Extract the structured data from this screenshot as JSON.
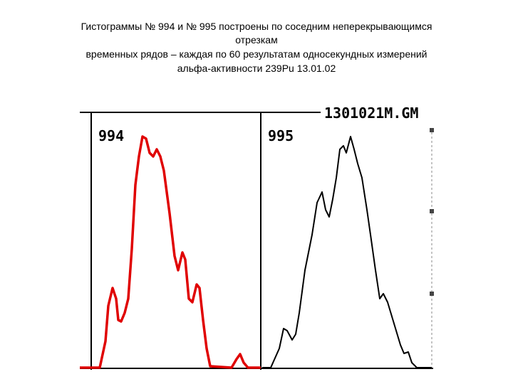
{
  "title": {
    "lines": [
      "Гистограммы № 994 и № 995 построены по соседним неперекрывающимся",
      "отрезкам",
      "временных рядов – каждая по 60 результатам односекундных измерений",
      "альфа-активности 239Pu 13.01.02"
    ]
  },
  "panels": [
    {
      "label": "994"
    },
    {
      "label": "995"
    }
  ],
  "file_label": "1301021M.GM"
}
